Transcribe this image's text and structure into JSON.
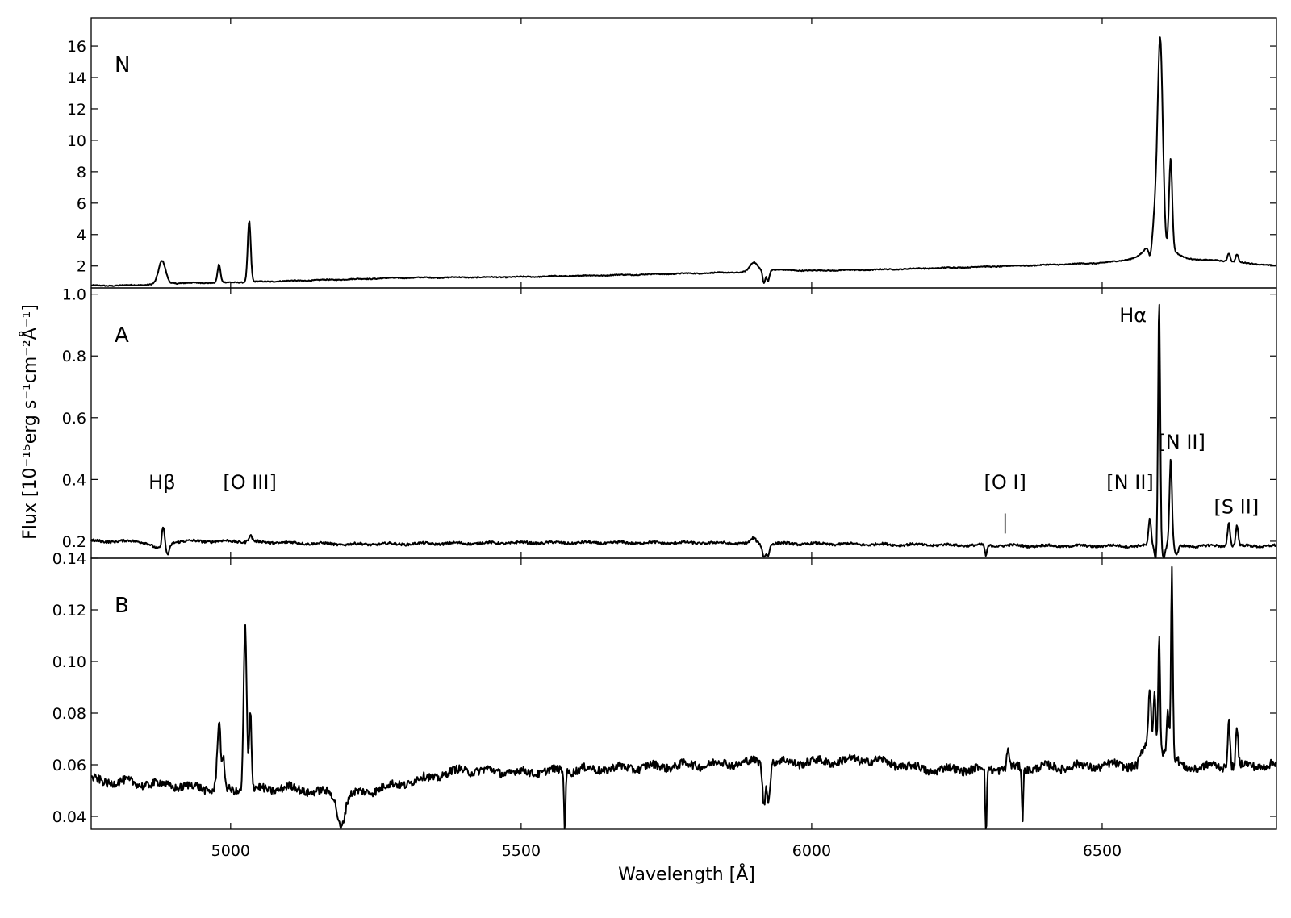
{
  "chart_data": {
    "type": "line",
    "xlabel": "Wavelength [Å]",
    "ylabel": "Flux [10⁻¹⁵erg s⁻¹cm⁻²Å⁻¹]",
    "xlim": [
      4760,
      6800
    ],
    "xticks": [
      5000,
      5500,
      6000,
      6500
    ],
    "grid": false,
    "legend": "none",
    "line_color": "#000000",
    "panels": [
      {
        "name": "N",
        "ylim": [
          0.6,
          17.8
        ],
        "yticks": [
          2,
          4,
          6,
          8,
          10,
          12,
          14,
          16
        ],
        "continuum": [
          [
            4760,
            0.75
          ],
          [
            4800,
            0.75
          ],
          [
            4850,
            0.8
          ],
          [
            4900,
            0.9
          ],
          [
            5000,
            0.95
          ],
          [
            5100,
            1.05
          ],
          [
            5200,
            1.15
          ],
          [
            5300,
            1.25
          ],
          [
            5500,
            1.3
          ],
          [
            5700,
            1.45
          ],
          [
            5880,
            1.6
          ],
          [
            5905,
            1.75
          ],
          [
            5935,
            1.75
          ],
          [
            6000,
            1.7
          ],
          [
            6100,
            1.75
          ],
          [
            6300,
            1.95
          ],
          [
            6400,
            2.05
          ],
          [
            6500,
            2.15
          ],
          [
            6550,
            2.25
          ],
          [
            6700,
            2.3
          ],
          [
            6800,
            2.0
          ]
        ],
        "features": [
          {
            "c": 4882,
            "a": 1.45,
            "w": 6
          },
          {
            "c": 4980,
            "a": 1.15,
            "w": 2.5
          },
          {
            "c": 5032,
            "a": 3.9,
            "w": 2.6
          },
          {
            "c": 5900,
            "a": 0.5,
            "w": 6
          },
          {
            "c": 5918,
            "a": -0.85,
            "w": 2.2
          },
          {
            "c": 5925,
            "a": -0.7,
            "w": 2.2
          },
          {
            "c": 6598,
            "a": 5.5,
            "w": 10,
            "shape": "lorentz"
          },
          {
            "c": 6600,
            "a": 9.0,
            "w": 4
          },
          {
            "c": 6583,
            "a": -1.2,
            "w": 3
          },
          {
            "c": 6618,
            "a": 5.5,
            "w": 2.6
          },
          {
            "c": 6610,
            "a": -1.0,
            "w": 2.5
          },
          {
            "c": 6718,
            "a": 0.55,
            "w": 2.4
          },
          {
            "c": 6732,
            "a": 0.5,
            "w": 2.4
          }
        ],
        "noise": 0.03
      },
      {
        "name": "A",
        "ylim": [
          0.145,
          1.02
        ],
        "yticks": [
          0.2,
          0.4,
          0.6,
          0.8,
          1.0
        ],
        "continuum": [
          [
            4760,
            0.2
          ],
          [
            5000,
            0.2
          ],
          [
            5200,
            0.19
          ],
          [
            5500,
            0.195
          ],
          [
            5800,
            0.195
          ],
          [
            6100,
            0.19
          ],
          [
            6400,
            0.185
          ],
          [
            6800,
            0.185
          ]
        ],
        "features": [
          {
            "c": 4877,
            "a": -0.025,
            "w": 12
          },
          {
            "c": 4884,
            "a": 0.07,
            "w": 2.2
          },
          {
            "c": 4892,
            "a": -0.03,
            "w": 3
          },
          {
            "c": 5034,
            "a": 0.02,
            "w": 3
          },
          {
            "c": 5900,
            "a": 0.015,
            "w": 4
          },
          {
            "c": 5918,
            "a": -0.04,
            "w": 3
          },
          {
            "c": 5925,
            "a": -0.035,
            "w": 2.5
          },
          {
            "c": 6300,
            "a": -0.035,
            "w": 1.8
          },
          {
            "c": 6582,
            "a": 0.085,
            "w": 2.2
          },
          {
            "c": 6592,
            "a": -0.04,
            "w": 2
          },
          {
            "c": 6598,
            "a": 0.8,
            "w": 1.8
          },
          {
            "c": 6606,
            "a": -0.04,
            "w": 2
          },
          {
            "c": 6618,
            "a": 0.28,
            "w": 2.2
          },
          {
            "c": 6628,
            "a": -0.03,
            "w": 3
          },
          {
            "c": 6718,
            "a": 0.075,
            "w": 2.2
          },
          {
            "c": 6732,
            "a": 0.065,
            "w": 2.2
          }
        ],
        "noise": 0.004
      },
      {
        "name": "B",
        "ylim": [
          0.035,
          0.14
        ],
        "yticks": [
          0.04,
          0.06,
          0.08,
          0.1,
          0.12,
          0.14
        ],
        "continuum": [
          [
            4760,
            0.054
          ],
          [
            4900,
            0.052
          ],
          [
            5000,
            0.05
          ],
          [
            5100,
            0.051
          ],
          [
            5200,
            0.048
          ],
          [
            5300,
            0.053
          ],
          [
            5400,
            0.058
          ],
          [
            5500,
            0.057
          ],
          [
            5800,
            0.06
          ],
          [
            5900,
            0.061
          ],
          [
            6000,
            0.061
          ],
          [
            6100,
            0.062
          ],
          [
            6200,
            0.058
          ],
          [
            6400,
            0.059
          ],
          [
            6560,
            0.06
          ],
          [
            6580,
            0.07
          ],
          [
            6640,
            0.059
          ],
          [
            6800,
            0.06
          ]
        ],
        "features": [
          {
            "c": 4980,
            "a": 0.026,
            "w": 3
          },
          {
            "c": 4988,
            "a": 0.01,
            "w": 2
          },
          {
            "c": 5025,
            "a": 0.064,
            "w": 2.6
          },
          {
            "c": 5034,
            "a": 0.03,
            "w": 2
          },
          {
            "c": 5190,
            "a": -0.012,
            "w": 6
          },
          {
            "c": 5575,
            "a": -0.025,
            "w": 1.2
          },
          {
            "c": 5918,
            "a": -0.016,
            "w": 2.5
          },
          {
            "c": 5926,
            "a": -0.014,
            "w": 2.5
          },
          {
            "c": 6300,
            "a": -0.03,
            "w": 1.2
          },
          {
            "c": 6338,
            "a": 0.007,
            "w": 2
          },
          {
            "c": 6363,
            "a": -0.02,
            "w": 1.2
          },
          {
            "c": 6582,
            "a": 0.02,
            "w": 2
          },
          {
            "c": 6590,
            "a": 0.02,
            "w": 1.8
          },
          {
            "c": 6598,
            "a": 0.045,
            "w": 1.6
          },
          {
            "c": 6613,
            "a": 0.018,
            "w": 2
          },
          {
            "c": 6620,
            "a": 0.073,
            "w": 1.6
          },
          {
            "c": 6718,
            "a": 0.018,
            "w": 2
          },
          {
            "c": 6732,
            "a": 0.014,
            "w": 2
          }
        ],
        "noise": 0.0016
      }
    ],
    "annotations": [
      {
        "text": "Hβ",
        "panel": "A",
        "x": 4882,
        "y": 0.37
      },
      {
        "text": "[O III]",
        "panel": "A",
        "x": 5033,
        "y": 0.37
      },
      {
        "text": "[O I]",
        "panel": "A",
        "x": 6333,
        "y": 0.37
      },
      {
        "text": "[N II]",
        "panel": "A",
        "x": 6548,
        "y": 0.37
      },
      {
        "text": "Hα",
        "panel": "A",
        "x": 6553,
        "y": 0.91
      },
      {
        "text": "[N II]",
        "panel": "A",
        "x": 6637,
        "y": 0.5
      },
      {
        "text": "[S II]",
        "panel": "A",
        "x": 6731,
        "y": 0.29
      }
    ],
    "marker": {
      "panel": "A",
      "x": 6333,
      "y_from": 0.225,
      "y_to": 0.29
    }
  }
}
